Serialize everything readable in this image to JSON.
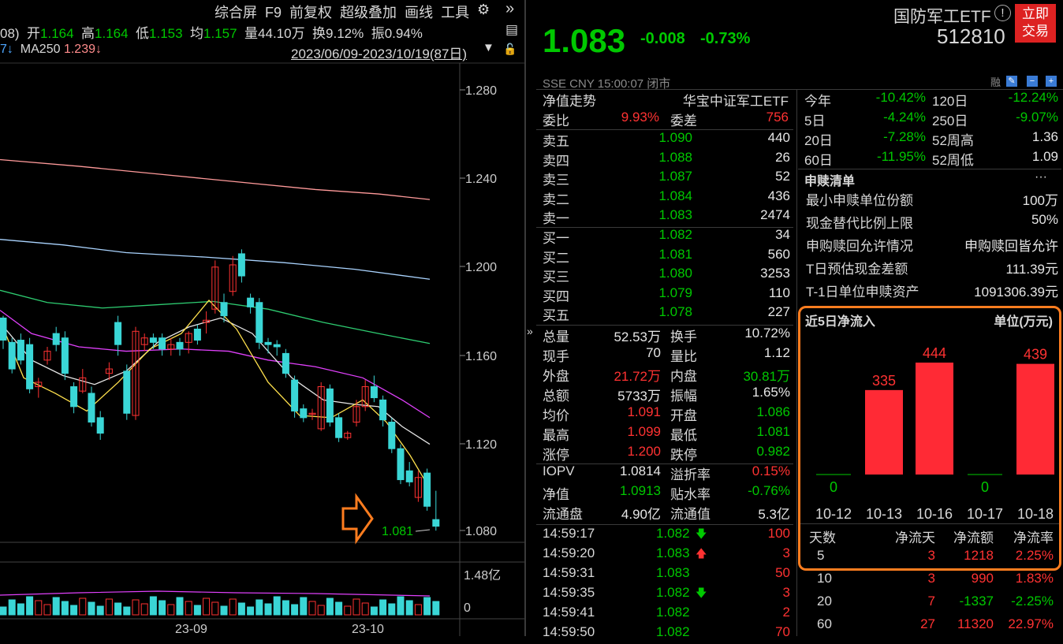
{
  "toolbar": {
    "items": [
      "综合屏",
      "F9",
      "前复权",
      "超级叠加",
      "画线",
      "工具"
    ]
  },
  "quote_line": {
    "prefix": "08)",
    "open_label": "开",
    "open": "1.164",
    "high_label": "高",
    "high": "1.164",
    "low_label": "低",
    "low": "1.153",
    "avg_label": "均",
    "avg": "1.157",
    "vol_label": "量",
    "vol": "44.10万",
    "turn_label": "换",
    "turn": "9.12%",
    "amp_label": "振",
    "amp": "0.94%"
  },
  "ma_line": {
    "prefix": "7↓",
    "ma250_label": "MA250",
    "ma250": "1.239↓",
    "range": "2023/06/09-2023/10/19(87日)"
  },
  "price_axis": [
    "1.280",
    "1.240",
    "1.200",
    "1.160",
    "1.120",
    "1.080"
  ],
  "vol_axis": [
    "1.48亿",
    "0"
  ],
  "date_axis": [
    "23-09",
    "23-10"
  ],
  "last_price_label": "1.081",
  "header": {
    "name": "国防军工ETF",
    "code": "512810",
    "trade_button": "立即\n交易",
    "price": "1.083",
    "change": "-0.008",
    "change_pct": "-0.73%",
    "meta": "SSE  CNY  15:00:07  闭市",
    "meta_icons": [
      "融"
    ]
  },
  "nav_row": {
    "label": "净值走势",
    "index": "华宝中证军工ETF"
  },
  "weibi": {
    "label1": "委比",
    "val1": "9.93%",
    "label2": "委差",
    "val2": "756"
  },
  "sells": [
    {
      "label": "卖五",
      "price": "1.090",
      "vol": "440"
    },
    {
      "label": "卖四",
      "price": "1.088",
      "vol": "26"
    },
    {
      "label": "卖三",
      "price": "1.087",
      "vol": "52"
    },
    {
      "label": "卖二",
      "price": "1.084",
      "vol": "436"
    },
    {
      "label": "卖一",
      "price": "1.083",
      "vol": "2474"
    }
  ],
  "buys": [
    {
      "label": "买一",
      "price": "1.082",
      "vol": "34"
    },
    {
      "label": "买二",
      "price": "1.081",
      "vol": "560"
    },
    {
      "label": "买三",
      "price": "1.080",
      "vol": "3253"
    },
    {
      "label": "买四",
      "price": "1.079",
      "vol": "110"
    },
    {
      "label": "买五",
      "price": "1.078",
      "vol": "227"
    }
  ],
  "stats": [
    {
      "l1": "总量",
      "v1": "52.53万",
      "c1": "w",
      "l2": "换手",
      "v2": "10.72%",
      "c2": "w"
    },
    {
      "l1": "现手",
      "v1": "70",
      "c1": "w",
      "l2": "量比",
      "v2": "1.12",
      "c2": "w"
    },
    {
      "l1": "外盘",
      "v1": "21.72万",
      "c1": "r",
      "l2": "内盘",
      "v2": "30.81万",
      "c2": "g"
    },
    {
      "l1": "总额",
      "v1": "5733万",
      "c1": "w",
      "l2": "振幅",
      "v2": "1.65%",
      "c2": "w"
    },
    {
      "l1": "均价",
      "v1": "1.091",
      "c1": "r",
      "l2": "开盘",
      "v2": "1.086",
      "c2": "g"
    },
    {
      "l1": "最高",
      "v1": "1.099",
      "c1": "r",
      "l2": "最低",
      "v2": "1.081",
      "c2": "g"
    },
    {
      "l1": "涨停",
      "v1": "1.200",
      "c1": "r",
      "l2": "跌停",
      "v2": "0.982",
      "c2": "g"
    }
  ],
  "iopv": [
    {
      "l1": "IOPV",
      "v1": "1.0814",
      "c1": "w",
      "l2": "溢折率",
      "v2": "0.15%",
      "c2": "r"
    },
    {
      "l1": "净值",
      "v1": "1.0913",
      "c1": "g",
      "l2": "贴水率",
      "v2": "-0.76%",
      "c2": "g"
    },
    {
      "l1": "流通盘",
      "v1": "4.90亿",
      "c1": "w",
      "l2": "流通值",
      "v2": "5.3亿",
      "c2": "w"
    }
  ],
  "ticks": [
    {
      "time": "14:59:17",
      "price": "1.082",
      "dir": "down",
      "vol": "100"
    },
    {
      "time": "14:59:20",
      "price": "1.083",
      "dir": "up",
      "vol": "3"
    },
    {
      "time": "14:59:31",
      "price": "1.083",
      "dir": "",
      "vol": "50"
    },
    {
      "time": "14:59:35",
      "price": "1.082",
      "dir": "down",
      "vol": "3"
    },
    {
      "time": "14:59:41",
      "price": "1.082",
      "dir": "",
      "vol": "2"
    },
    {
      "time": "14:59:50",
      "price": "1.082",
      "dir": "",
      "vol": "70"
    }
  ],
  "periods": [
    {
      "l1": "今年",
      "v1": "-10.42%",
      "l2": "120日",
      "v2": "-12.24%"
    },
    {
      "l1": "5日",
      "v1": "-4.24%",
      "l2": "250日",
      "v2": "-9.07%"
    },
    {
      "l1": "20日",
      "v1": "-7.28%",
      "l2": "52周高",
      "v2": "1.36"
    },
    {
      "l1": "60日",
      "v1": "-11.95%",
      "l2": "52周低",
      "v2": "1.09"
    }
  ],
  "redeem": {
    "title": "申赎清单",
    "more": "···",
    "rows": [
      {
        "label": "最小申赎单位份额",
        "value": "100万"
      },
      {
        "label": "现金替代比例上限",
        "value": "50%"
      },
      {
        "label": "申购赎回允许情况",
        "value": "申购赎回皆允许"
      },
      {
        "label": "T日预估现金差额",
        "value": "111.39元"
      },
      {
        "label": "T-1日单位申赎资产",
        "value": "1091306.39元"
      }
    ]
  },
  "netflow": {
    "title": "近5日净流入",
    "unit": "单位(万元)",
    "head": [
      "天数",
      "净流天",
      "净流额",
      "净流率"
    ],
    "rows": [
      {
        "d": "5",
        "days": "3",
        "amt": "1218",
        "rate": "2.25%",
        "c": "r"
      },
      {
        "d": "10",
        "days": "3",
        "amt": "990",
        "rate": "1.83%",
        "c": "r"
      },
      {
        "d": "20",
        "days": "7",
        "amt": "-1337",
        "rate": "-2.25%",
        "c": "g"
      },
      {
        "d": "60",
        "days": "27",
        "amt": "11320",
        "rate": "22.97%",
        "c": "r"
      }
    ]
  },
  "chart_data": {
    "type": "bar",
    "categories": [
      "10-12",
      "10-13",
      "10-16",
      "10-17",
      "10-18"
    ],
    "values": [
      0,
      335,
      444,
      0,
      439
    ],
    "title": "近5日净流入",
    "ylabel": "单位(万元)"
  },
  "colors": {
    "up": "#ff3232",
    "down": "#00c800",
    "accent_box": "#ff7d1f",
    "candle_down": "#3ad6d6"
  }
}
